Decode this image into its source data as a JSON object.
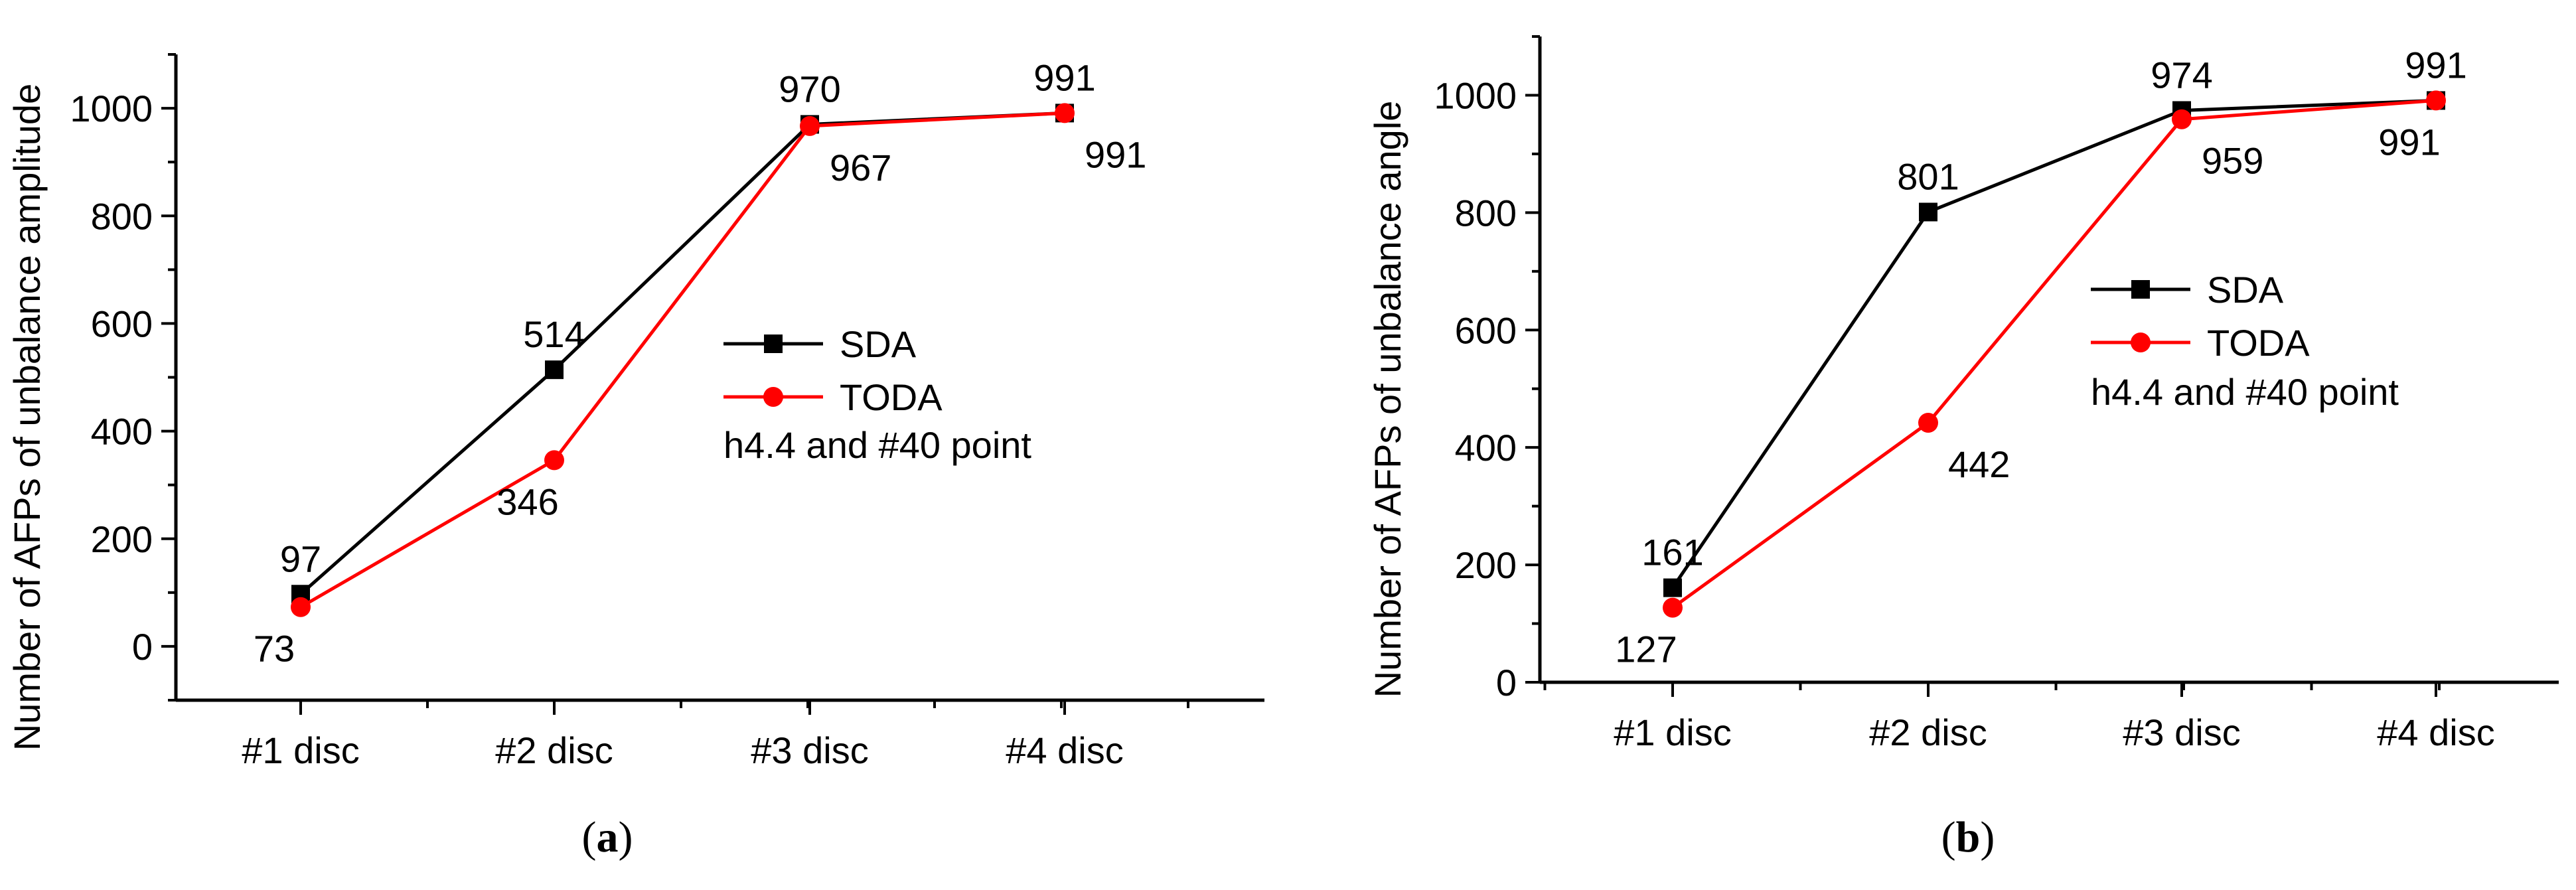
{
  "colors": {
    "sda": "#000000",
    "toda": "#ff0000",
    "axis": "#000000"
  },
  "chart_data": [
    {
      "id": "a",
      "type": "line",
      "caption": "(a)",
      "categories": [
        "#1 disc",
        "#2 disc",
        "#3 disc",
        "#4 disc"
      ],
      "ylabel": "Number of AFPs of unbalance amplitude",
      "xlabel": "",
      "ylim": [
        -100,
        1100
      ],
      "yticks": [
        0,
        200,
        400,
        600,
        800,
        1000
      ],
      "series": [
        {
          "name": "SDA",
          "values": [
            97,
            514,
            970,
            991
          ],
          "marker": "square"
        },
        {
          "name": "TODA",
          "values": [
            73,
            346,
            967,
            991
          ],
          "marker": "circle"
        }
      ],
      "legend_note": "h4.4 and #40 point",
      "data_labels": [
        {
          "text": "97",
          "series": 0,
          "index": 0,
          "pos": "above"
        },
        {
          "text": "514",
          "series": 0,
          "index": 1,
          "pos": "above"
        },
        {
          "text": "970",
          "series": 0,
          "index": 2,
          "pos": "above"
        },
        {
          "text": "991",
          "series": 0,
          "index": 3,
          "pos": "above"
        },
        {
          "text": "73",
          "series": 1,
          "index": 0,
          "pos": "below-left"
        },
        {
          "text": "346",
          "series": 1,
          "index": 1,
          "pos": "below-left"
        },
        {
          "text": "967",
          "series": 1,
          "index": 2,
          "pos": "below"
        },
        {
          "text": "991",
          "series": 1,
          "index": 3,
          "pos": "below"
        }
      ]
    },
    {
      "id": "b",
      "type": "line",
      "caption": "(b)",
      "categories": [
        "#1 disc",
        "#2 disc",
        "#3 disc",
        "#4 disc"
      ],
      "ylabel": "Number of AFPs of unbalance angle",
      "xlabel": "",
      "ylim": [
        0,
        1100
      ],
      "yticks": [
        0,
        200,
        400,
        600,
        800,
        1000
      ],
      "series": [
        {
          "name": "SDA",
          "values": [
            161,
            801,
            974,
            991
          ],
          "marker": "square"
        },
        {
          "name": "TODA",
          "values": [
            127,
            442,
            959,
            991
          ],
          "marker": "circle"
        }
      ],
      "legend_note": "h4.4 and #40 point",
      "data_labels": [
        {
          "text": "161",
          "series": 0,
          "index": 0,
          "pos": "above"
        },
        {
          "text": "801",
          "series": 0,
          "index": 1,
          "pos": "above"
        },
        {
          "text": "974",
          "series": 0,
          "index": 2,
          "pos": "above"
        },
        {
          "text": "991",
          "series": 0,
          "index": 3,
          "pos": "above"
        },
        {
          "text": "127",
          "series": 1,
          "index": 0,
          "pos": "below-left"
        },
        {
          "text": "442",
          "series": 1,
          "index": 1,
          "pos": "below"
        },
        {
          "text": "959",
          "series": 1,
          "index": 2,
          "pos": "below"
        },
        {
          "text": "991",
          "series": 1,
          "index": 3,
          "pos": "below-left"
        }
      ]
    }
  ]
}
